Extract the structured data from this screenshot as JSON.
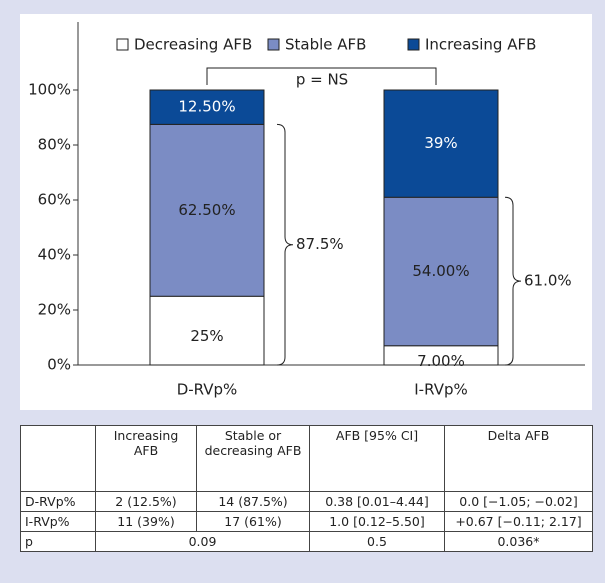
{
  "chart_data": {
    "type": "stacked-bar",
    "categories": [
      "D-RVp%",
      "I-RVp%"
    ],
    "series": [
      {
        "name": "Decreasing AFB",
        "color": "#ffffff",
        "values": [
          25,
          7
        ],
        "value_labels": [
          "25%",
          "7.00%"
        ]
      },
      {
        "name": "Stable AFB",
        "color": "#7b8cc4",
        "values": [
          62.5,
          54
        ],
        "value_labels": [
          "62.50%",
          "54.00%"
        ]
      },
      {
        "name": "Increasing AFB",
        "color": "#0b4a97",
        "values": [
          12.5,
          39
        ],
        "value_labels": [
          "12.50%",
          "39%"
        ]
      }
    ],
    "ylim": [
      0,
      100
    ],
    "yticks": [
      {
        "value": 0,
        "label": "0%"
      },
      {
        "value": 20,
        "label": "20%"
      },
      {
        "value": 40,
        "label": "40%"
      },
      {
        "value": 60,
        "label": "60%"
      },
      {
        "value": 80,
        "label": "80%"
      },
      {
        "value": 100,
        "label": "100%"
      }
    ],
    "annotations": [
      "p = NS",
      "87.5%",
      "61.0%"
    ],
    "legend": "top"
  },
  "table": {
    "header": [
      "Increasing AFB",
      "Stable or decreasing AFB",
      "AFB [95% CI]",
      "Delta AFB"
    ],
    "rows": [
      [
        "D-RVp%",
        "2 (12.5%)",
        "14 (87.5%)",
        "0.38 [0.01–4.44]",
        "0.0 [−1.05; −0.02]"
      ],
      [
        "I-RVp%",
        "11 (39%)",
        "17 (61%)",
        "1.0 [0.12–5.50]",
        "+0.67 [−0.11; 2.17]"
      ],
      [
        "p",
        "0.09",
        "0.5",
        "0.036*"
      ]
    ]
  }
}
